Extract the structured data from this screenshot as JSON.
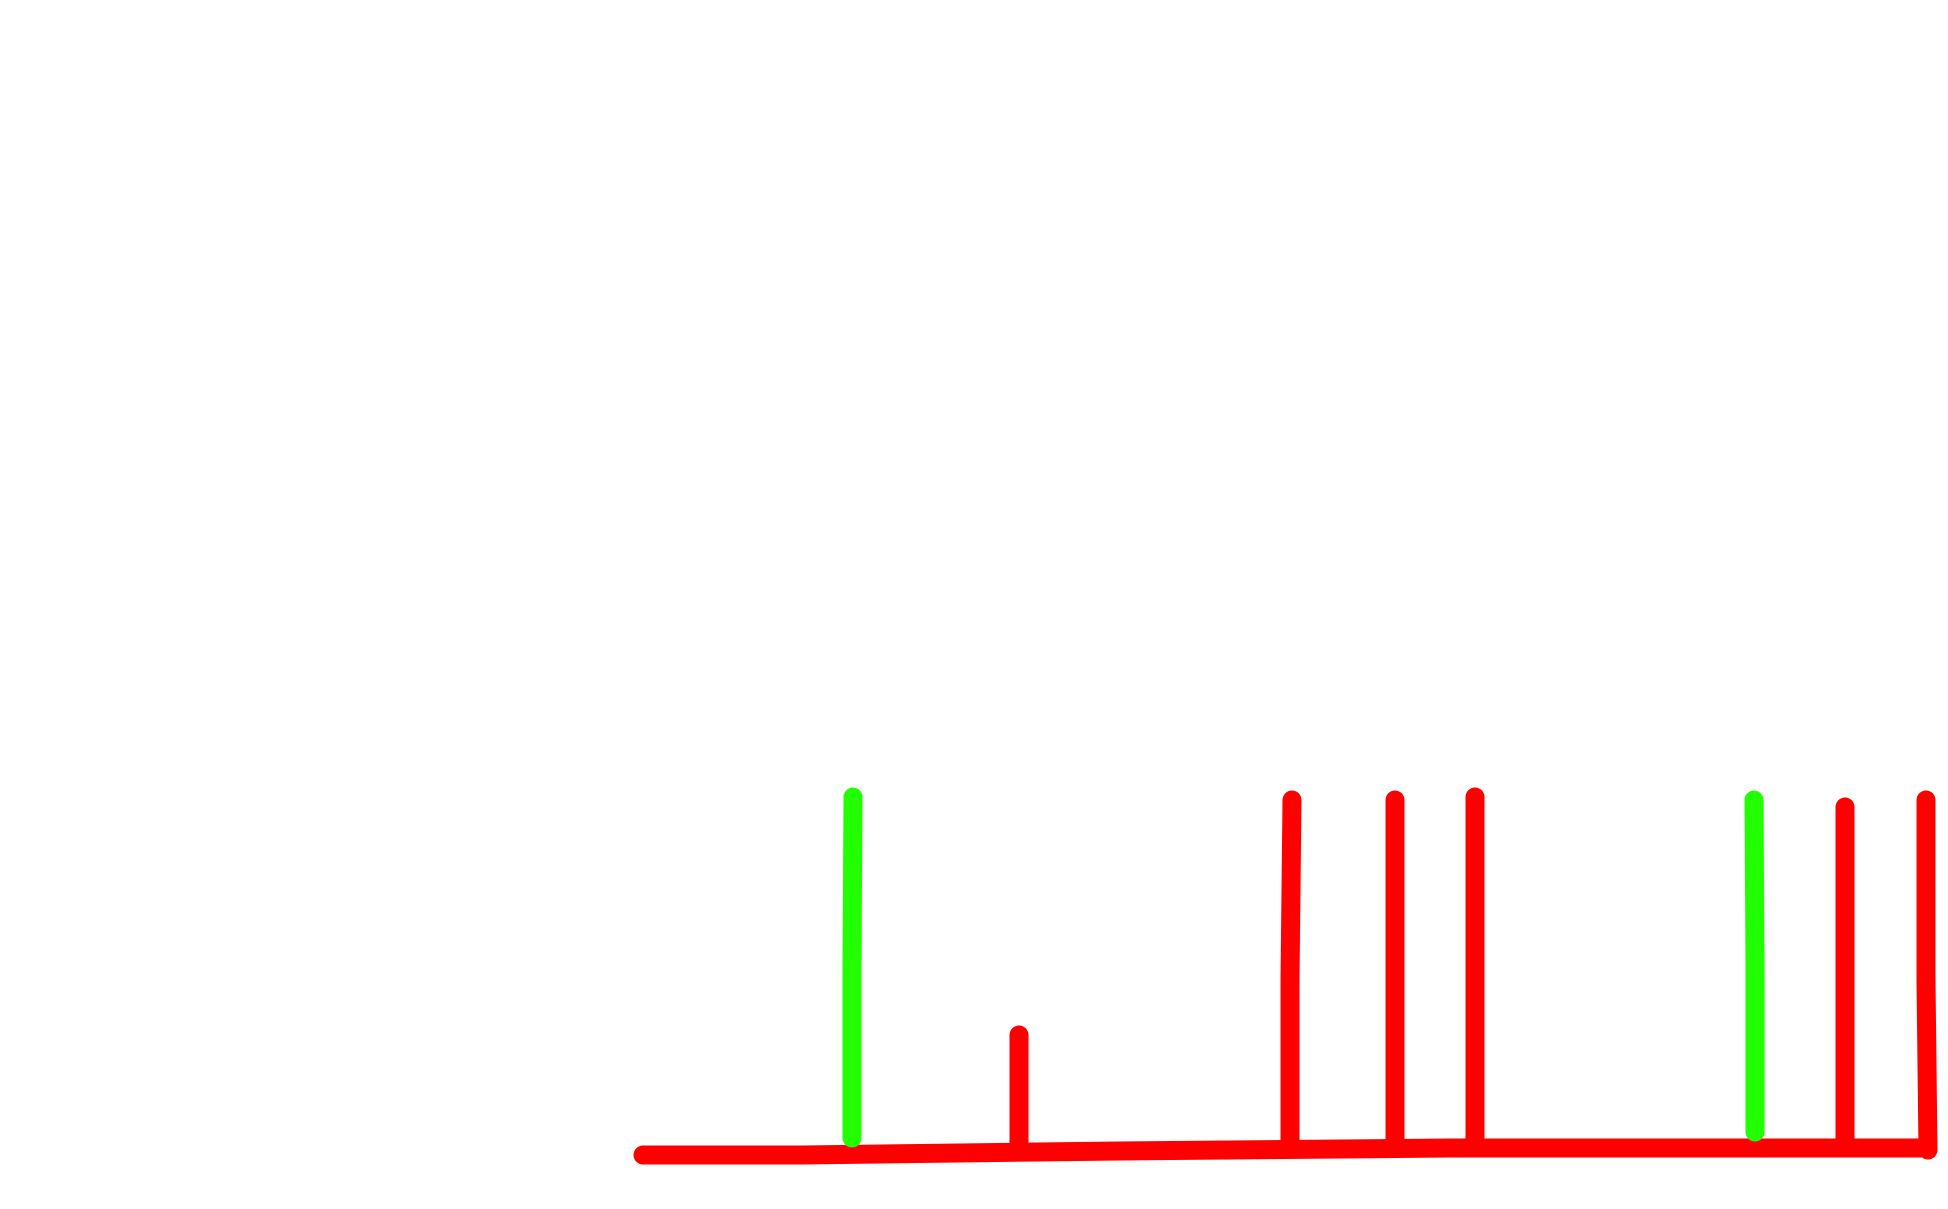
{
  "colors": {
    "background": "#ffffff",
    "red": "#ff0000",
    "green": "#22ff00"
  },
  "strokes": [
    {
      "name": "baseline-stroke",
      "color": "red"
    },
    {
      "name": "tall-green-stroke-1",
      "color": "green"
    },
    {
      "name": "short-red-stroke",
      "color": "red"
    },
    {
      "name": "tall-red-stroke-1",
      "color": "red"
    },
    {
      "name": "tall-red-stroke-2",
      "color": "red"
    },
    {
      "name": "tall-red-stroke-3",
      "color": "red"
    },
    {
      "name": "tall-green-stroke-2",
      "color": "green"
    },
    {
      "name": "tall-red-stroke-4",
      "color": "red"
    },
    {
      "name": "tall-red-stroke-5",
      "color": "red"
    }
  ]
}
